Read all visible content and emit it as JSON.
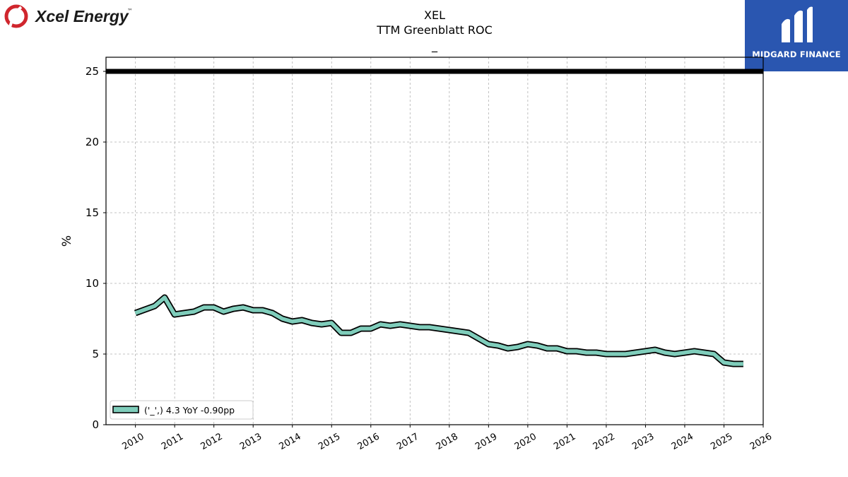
{
  "header": {
    "left_logo_text": "Xcel Energy",
    "left_logo_tm": "™",
    "right_logo_text": "MIDGARD FINANCE",
    "colors": {
      "xcel_red": "#d0262d",
      "midgard_blue": "#2a56b0"
    }
  },
  "chart_data": {
    "type": "line",
    "title": "XEL",
    "subtitle": "TTM Greenblatt ROC",
    "subtitle2": "_",
    "ylabel": "%",
    "xlabel": "",
    "ylim": [
      0,
      26
    ],
    "yticks": [
      0,
      5,
      10,
      15,
      20,
      25
    ],
    "xlim": [
      2009.25,
      2026.0
    ],
    "xticks": [
      "2010",
      "2011",
      "2012",
      "2013",
      "2014",
      "2015",
      "2016",
      "2017",
      "2018",
      "2019",
      "2020",
      "2021",
      "2022",
      "2023",
      "2024",
      "2025",
      "2026"
    ],
    "grid": true,
    "legend_position": "lower-left",
    "reference_line": {
      "y": 25,
      "color": "#000000"
    },
    "series": [
      {
        "name": "('_',) 4.3 YoY -0.90pp",
        "color": "#7fcdbb",
        "x": [
          "2009-12-31",
          "2010-06-30",
          "2010-09-30",
          "2010-12-31",
          "2011-06-30",
          "2011-09-30",
          "2011-12-31",
          "2012-03-31",
          "2012-06-30",
          "2012-09-30",
          "2012-12-31",
          "2013-03-31",
          "2013-06-30",
          "2013-09-30",
          "2013-12-31",
          "2014-03-31",
          "2014-06-30",
          "2014-09-30",
          "2014-12-31",
          "2015-03-31",
          "2015-06-30",
          "2015-09-30",
          "2015-12-31",
          "2016-03-31",
          "2016-06-30",
          "2016-09-30",
          "2016-12-31",
          "2017-03-31",
          "2017-06-30",
          "2017-09-30",
          "2017-12-31",
          "2018-03-31",
          "2018-06-30",
          "2018-09-30",
          "2018-12-31",
          "2019-03-31",
          "2019-06-30",
          "2019-09-30",
          "2019-12-31",
          "2020-03-31",
          "2020-06-30",
          "2020-09-30",
          "2020-12-31",
          "2021-03-31",
          "2021-06-30",
          "2021-09-30",
          "2021-12-31",
          "2022-03-31",
          "2022-06-30",
          "2022-09-30",
          "2022-12-31",
          "2023-03-31",
          "2023-06-30",
          "2023-09-30",
          "2023-12-31",
          "2024-03-31",
          "2024-06-30",
          "2024-09-30",
          "2024-12-31",
          "2025-03-31",
          "2025-06-30"
        ],
        "values": [
          7.9,
          8.4,
          9.0,
          7.8,
          8.0,
          8.3,
          8.3,
          8.0,
          8.2,
          8.3,
          8.1,
          8.1,
          7.9,
          7.5,
          7.3,
          7.4,
          7.2,
          7.1,
          7.2,
          6.5,
          6.5,
          6.8,
          6.8,
          7.1,
          7.0,
          7.1,
          7.0,
          6.9,
          6.9,
          6.8,
          6.7,
          6.6,
          6.5,
          6.1,
          5.7,
          5.6,
          5.4,
          5.5,
          5.7,
          5.6,
          5.4,
          5.4,
          5.2,
          5.2,
          5.1,
          5.1,
          5.0,
          5.0,
          5.0,
          5.1,
          5.2,
          5.3,
          5.1,
          5.0,
          5.1,
          5.2,
          5.1,
          5.0,
          4.4,
          4.3,
          4.3
        ]
      }
    ]
  }
}
